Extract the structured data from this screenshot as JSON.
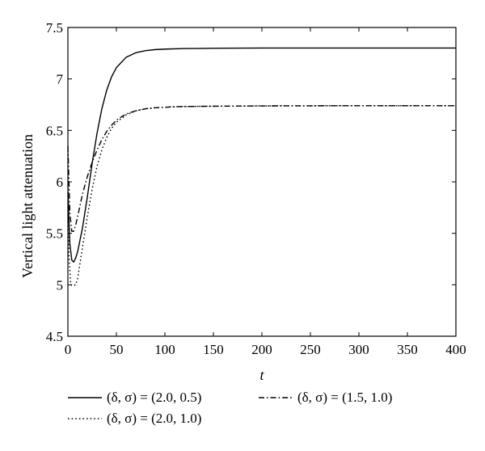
{
  "chart_data": {
    "type": "line",
    "title": "",
    "xlabel": "t",
    "ylabel": "Vertical light attenuation",
    "xlim": [
      0,
      400
    ],
    "ylim": [
      4.5,
      7.5
    ],
    "xticks": [
      0,
      50,
      100,
      150,
      200,
      250,
      300,
      350,
      400
    ],
    "yticks": [
      4.5,
      5,
      5.5,
      6,
      6.5,
      7,
      7.5
    ],
    "xtick_labels": [
      "0",
      "50",
      "100",
      "150",
      "200",
      "250",
      "300",
      "350",
      "400"
    ],
    "ytick_labels": [
      "4.5",
      "5",
      "5.5",
      "6",
      "6.5",
      "7",
      "7.5"
    ],
    "grid": false,
    "legend_position": "bottom",
    "series": [
      {
        "name": "(δ, σ) = (2.0, 0.5)",
        "style": "solid",
        "color": "#000000",
        "x": [
          0,
          2,
          4,
          6,
          8,
          10,
          15,
          20,
          25,
          30,
          35,
          40,
          45,
          50,
          60,
          70,
          80,
          90,
          100,
          120,
          150,
          200,
          300,
          400
        ],
        "y": [
          5.9,
          5.4,
          5.24,
          5.22,
          5.26,
          5.32,
          5.55,
          5.85,
          6.18,
          6.47,
          6.71,
          6.89,
          7.02,
          7.11,
          7.21,
          7.255,
          7.275,
          7.285,
          7.29,
          7.295,
          7.298,
          7.3,
          7.3,
          7.3
        ]
      },
      {
        "name": "(δ, σ) = (1.5, 1.0)",
        "style": "dashdot",
        "color": "#000000",
        "x": [
          0,
          2,
          4,
          6,
          8,
          10,
          15,
          20,
          25,
          30,
          35,
          40,
          45,
          50,
          60,
          70,
          80,
          90,
          100,
          110,
          120,
          150,
          200,
          300,
          400
        ],
        "y": [
          6.35,
          5.7,
          5.52,
          5.52,
          5.58,
          5.66,
          5.88,
          6.05,
          6.19,
          6.31,
          6.41,
          6.49,
          6.55,
          6.6,
          6.66,
          6.69,
          6.71,
          6.72,
          6.725,
          6.73,
          6.732,
          6.735,
          6.738,
          6.74,
          6.74
        ]
      },
      {
        "name": "(δ, σ) = (2.0, 1.0)",
        "style": "dotted",
        "color": "#000000",
        "x": [
          0,
          1,
          3,
          5,
          8,
          10,
          15,
          20,
          25,
          30,
          35,
          40,
          45,
          50,
          60,
          70,
          80,
          90,
          100,
          110,
          120,
          150,
          200,
          300,
          400
        ],
        "y": [
          6.3,
          5.3,
          5.0,
          4.99,
          5.0,
          5.06,
          5.36,
          5.66,
          5.93,
          6.15,
          6.31,
          6.43,
          6.52,
          6.58,
          6.65,
          6.69,
          6.71,
          6.72,
          6.725,
          6.73,
          6.732,
          6.735,
          6.738,
          6.74,
          6.74
        ]
      }
    ]
  }
}
